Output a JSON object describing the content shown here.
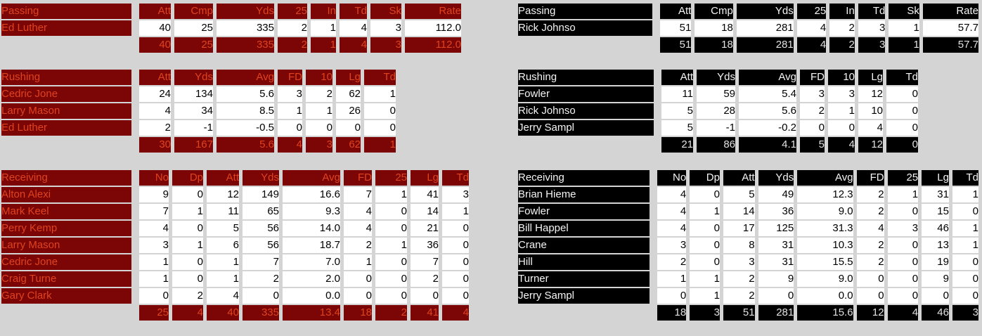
{
  "theme": {
    "page_bg": "#d4d4d4",
    "left_header_bg": "#7b0605",
    "left_header_text": "#e0431f",
    "right_header_bg": "#000000",
    "right_header_text": "#f4f4f4",
    "cell_bg": "#ffffff",
    "cell_text": "#000000"
  },
  "teams": [
    {
      "side": "left",
      "tables": [
        {
          "section": "Passing",
          "columns": [
            "Att",
            "Cmp",
            "Yds",
            "25",
            "In",
            "Td",
            "Sk",
            "Rate"
          ],
          "rows": [
            {
              "name": "Ed Luther",
              "values": [
                "40",
                "25",
                "335",
                "2",
                "1",
                "4",
                "3",
                "112.0"
              ]
            }
          ],
          "totals": [
            "40",
            "25",
            "335",
            "2",
            "1",
            "4",
            "3",
            "112.0"
          ]
        },
        {
          "section": "Rushing",
          "columns": [
            "Att",
            "Yds",
            "Avg",
            "FD",
            "10",
            "Lg",
            "Td"
          ],
          "rows": [
            {
              "name": "Cedric Jone",
              "values": [
                "24",
                "134",
                "5.6",
                "3",
                "2",
                "62",
                "1"
              ]
            },
            {
              "name": "Larry Mason",
              "values": [
                "4",
                "34",
                "8.5",
                "1",
                "1",
                "26",
                "0"
              ]
            },
            {
              "name": "Ed Luther",
              "values": [
                "2",
                "-1",
                "-0.5",
                "0",
                "0",
                "0",
                "0"
              ]
            }
          ],
          "totals": [
            "30",
            "167",
            "5.6",
            "4",
            "3",
            "62",
            "1"
          ]
        },
        {
          "section": "Receiving",
          "columns": [
            "No",
            "Dp",
            "Att",
            "Yds",
            "Avg",
            "FD",
            "25",
            "Lg",
            "Td"
          ],
          "rows": [
            {
              "name": "Alton Alexi",
              "values": [
                "9",
                "0",
                "12",
                "149",
                "16.6",
                "7",
                "1",
                "41",
                "3"
              ]
            },
            {
              "name": "Mark Keel",
              "values": [
                "7",
                "1",
                "11",
                "65",
                "9.3",
                "4",
                "0",
                "14",
                "1"
              ]
            },
            {
              "name": "Perry Kemp",
              "values": [
                "4",
                "0",
                "5",
                "56",
                "14.0",
                "4",
                "0",
                "21",
                "0"
              ]
            },
            {
              "name": "Larry Mason",
              "values": [
                "3",
                "1",
                "6",
                "56",
                "18.7",
                "2",
                "1",
                "36",
                "0"
              ]
            },
            {
              "name": "Cedric Jone",
              "values": [
                "1",
                "0",
                "1",
                "7",
                "7.0",
                "1",
                "0",
                "7",
                "0"
              ]
            },
            {
              "name": "Craig Turne",
              "values": [
                "1",
                "0",
                "1",
                "2",
                "2.0",
                "0",
                "0",
                "2",
                "0"
              ]
            },
            {
              "name": "Gary Clark",
              "values": [
                "0",
                "2",
                "4",
                "0",
                "0.0",
                "0",
                "0",
                "0",
                "0"
              ]
            }
          ],
          "totals": [
            "25",
            "4",
            "40",
            "335",
            "13.4",
            "18",
            "2",
            "41",
            "4"
          ]
        }
      ]
    },
    {
      "side": "right",
      "tables": [
        {
          "section": "Passing",
          "columns": [
            "Att",
            "Cmp",
            "Yds",
            "25",
            "In",
            "Td",
            "Sk",
            "Rate"
          ],
          "rows": [
            {
              "name": "Rick Johnso",
              "values": [
                "51",
                "18",
                "281",
                "4",
                "2",
                "3",
                "1",
                "57.7"
              ]
            }
          ],
          "totals": [
            "51",
            "18",
            "281",
            "4",
            "2",
            "3",
            "1",
            "57.7"
          ]
        },
        {
          "section": "Rushing",
          "columns": [
            "Att",
            "Yds",
            "Avg",
            "FD",
            "10",
            "Lg",
            "Td"
          ],
          "rows": [
            {
              "name": "Fowler",
              "values": [
                "11",
                "59",
                "5.4",
                "3",
                "3",
                "12",
                "0"
              ]
            },
            {
              "name": "Rick Johnso",
              "values": [
                "5",
                "28",
                "5.6",
                "2",
                "1",
                "10",
                "0"
              ]
            },
            {
              "name": "Jerry Sampl",
              "values": [
                "5",
                "-1",
                "-0.2",
                "0",
                "0",
                "4",
                "0"
              ]
            }
          ],
          "totals": [
            "21",
            "86",
            "4.1",
            "5",
            "4",
            "12",
            "0"
          ]
        },
        {
          "section": "Receiving",
          "columns": [
            "No",
            "Dp",
            "Att",
            "Yds",
            "Avg",
            "FD",
            "25",
            "Lg",
            "Td"
          ],
          "rows": [
            {
              "name": "Brian Hieme",
              "values": [
                "4",
                "0",
                "5",
                "49",
                "12.3",
                "2",
                "1",
                "31",
                "1"
              ]
            },
            {
              "name": "Fowler",
              "values": [
                "4",
                "1",
                "14",
                "36",
                "9.0",
                "2",
                "0",
                "15",
                "0"
              ]
            },
            {
              "name": "Bill Happel",
              "values": [
                "4",
                "0",
                "17",
                "125",
                "31.3",
                "4",
                "3",
                "46",
                "1"
              ]
            },
            {
              "name": "Crane",
              "values": [
                "3",
                "0",
                "8",
                "31",
                "10.3",
                "2",
                "0",
                "13",
                "1"
              ]
            },
            {
              "name": "Hill",
              "values": [
                "2",
                "0",
                "3",
                "31",
                "15.5",
                "2",
                "0",
                "19",
                "0"
              ]
            },
            {
              "name": "Turner",
              "values": [
                "1",
                "1",
                "2",
                "9",
                "9.0",
                "0",
                "0",
                "9",
                "0"
              ]
            },
            {
              "name": "Jerry Sampl",
              "values": [
                "0",
                "1",
                "2",
                "0",
                "0.0",
                "0",
                "0",
                "0",
                "0"
              ]
            }
          ],
          "totals": [
            "18",
            "3",
            "51",
            "281",
            "15.6",
            "12",
            "4",
            "46",
            "3"
          ]
        }
      ]
    }
  ]
}
